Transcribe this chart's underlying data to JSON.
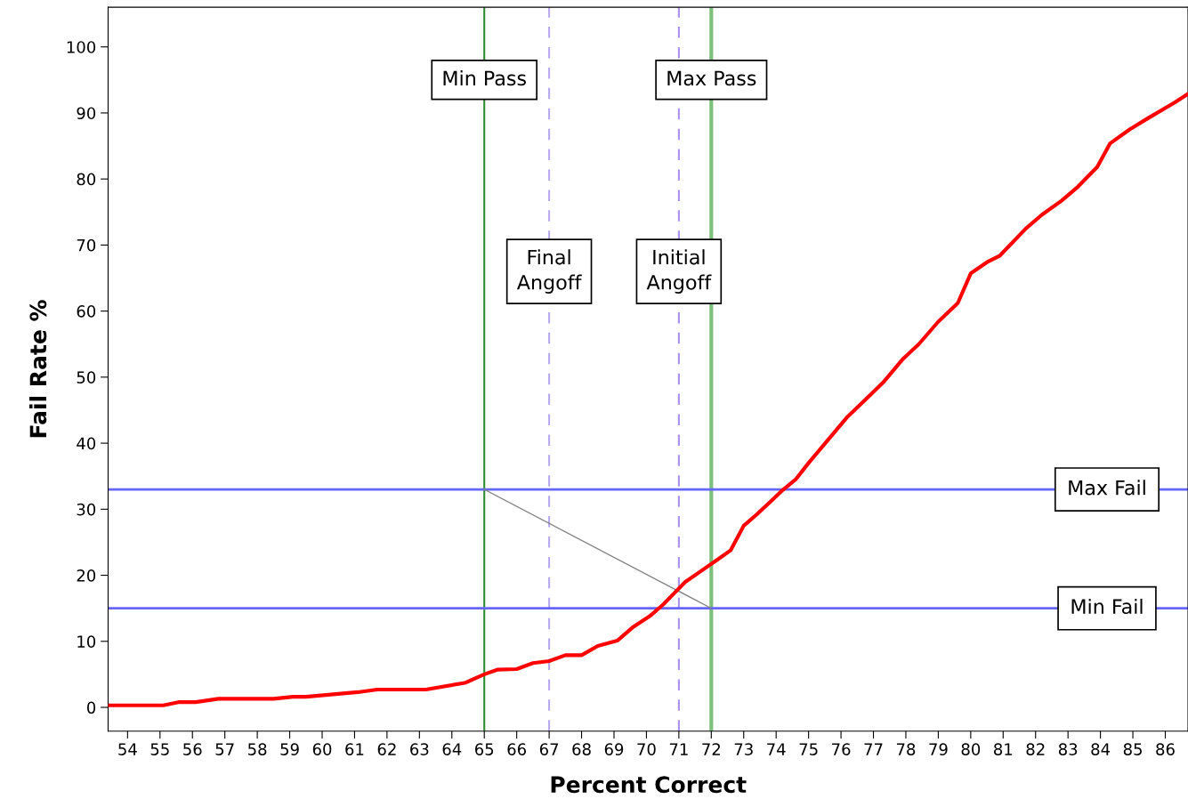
{
  "chart_data": {
    "type": "line",
    "xlabel": "Percent Correct",
    "ylabel": "Fail Rate %",
    "xlim": [
      53.4,
      86.7
    ],
    "ylim": [
      -3.6,
      106
    ],
    "xticks": [
      54,
      55,
      56,
      57,
      58,
      59,
      60,
      61,
      62,
      63,
      64,
      65,
      66,
      67,
      68,
      69,
      70,
      71,
      72,
      73,
      74,
      75,
      76,
      77,
      78,
      79,
      80,
      81,
      82,
      83,
      84,
      85,
      86
    ],
    "yticks": [
      0,
      10,
      20,
      30,
      40,
      50,
      60,
      70,
      80,
      90,
      100
    ],
    "grid": false,
    "marker": "none",
    "series": [
      {
        "color": "#ff0000",
        "line_style": "solid",
        "x": [
          53.4,
          55.1,
          55.6,
          56.1,
          56.8,
          58.5,
          59.1,
          59.5,
          61.1,
          61.7,
          63.2,
          64.4,
          65,
          65.4,
          66,
          66.5,
          67,
          67.5,
          68,
          68.5,
          69.1,
          69.6,
          70.1,
          70.5,
          70.9,
          71.2,
          71.7,
          72.2,
          72.6,
          73.0,
          73.4,
          73.9,
          74.2,
          74.6,
          75,
          75.6,
          76.2,
          76.9,
          77.3,
          77.9,
          78.4,
          79.0,
          79.6,
          80.0,
          80.5,
          80.9,
          81.7,
          82.2,
          82.8,
          83.3,
          83.9,
          84.3,
          84.9,
          85.5,
          86.3,
          86.7
        ],
        "values": [
          0.3,
          0.3,
          0.8,
          0.8,
          1.3,
          1.3,
          1.6,
          1.6,
          2.3,
          2.7,
          2.7,
          3.7,
          5,
          5.7,
          5.8,
          6.7,
          7,
          7.9,
          7.9,
          9.3,
          10.1,
          12.2,
          13.8,
          15.5,
          17.5,
          19,
          20.7,
          22.4,
          23.8,
          27.5,
          29.2,
          31.5,
          32.9,
          34.5,
          37,
          40.5,
          44,
          47.3,
          49.2,
          52.7,
          55,
          58.4,
          61.2,
          65.7,
          67.4,
          68.4,
          72.5,
          74.6,
          76.7,
          78.8,
          81.8,
          85.4,
          87.5,
          89.3,
          91.6,
          92.9
        ]
      },
      {
        "color": "#808080",
        "line_style": "solid",
        "x": [
          65,
          72
        ],
        "values": [
          33,
          15
        ]
      }
    ],
    "ref_lines": [
      {
        "axis": "x",
        "value": 65,
        "label": "Min Pass",
        "color": "#2e8b2e",
        "line_style": "solid"
      },
      {
        "axis": "x",
        "value": 67,
        "label": "Final\nAngoff",
        "color": "#b8a8f0",
        "line_style": "dashed"
      },
      {
        "axis": "x",
        "value": 71,
        "label": "Initial\nAngoff",
        "color": "#a890f0",
        "line_style": "dashed"
      },
      {
        "axis": "x",
        "value": 72,
        "label": "Max Pass",
        "color": "#7cc07c",
        "line_style": "solid"
      },
      {
        "axis": "y",
        "value": 33,
        "label": "Max Fail",
        "color": "#6666ff",
        "line_style": "solid"
      },
      {
        "axis": "y",
        "value": 15,
        "label": "Min Fail",
        "color": "#6666ff",
        "line_style": "solid"
      }
    ]
  }
}
